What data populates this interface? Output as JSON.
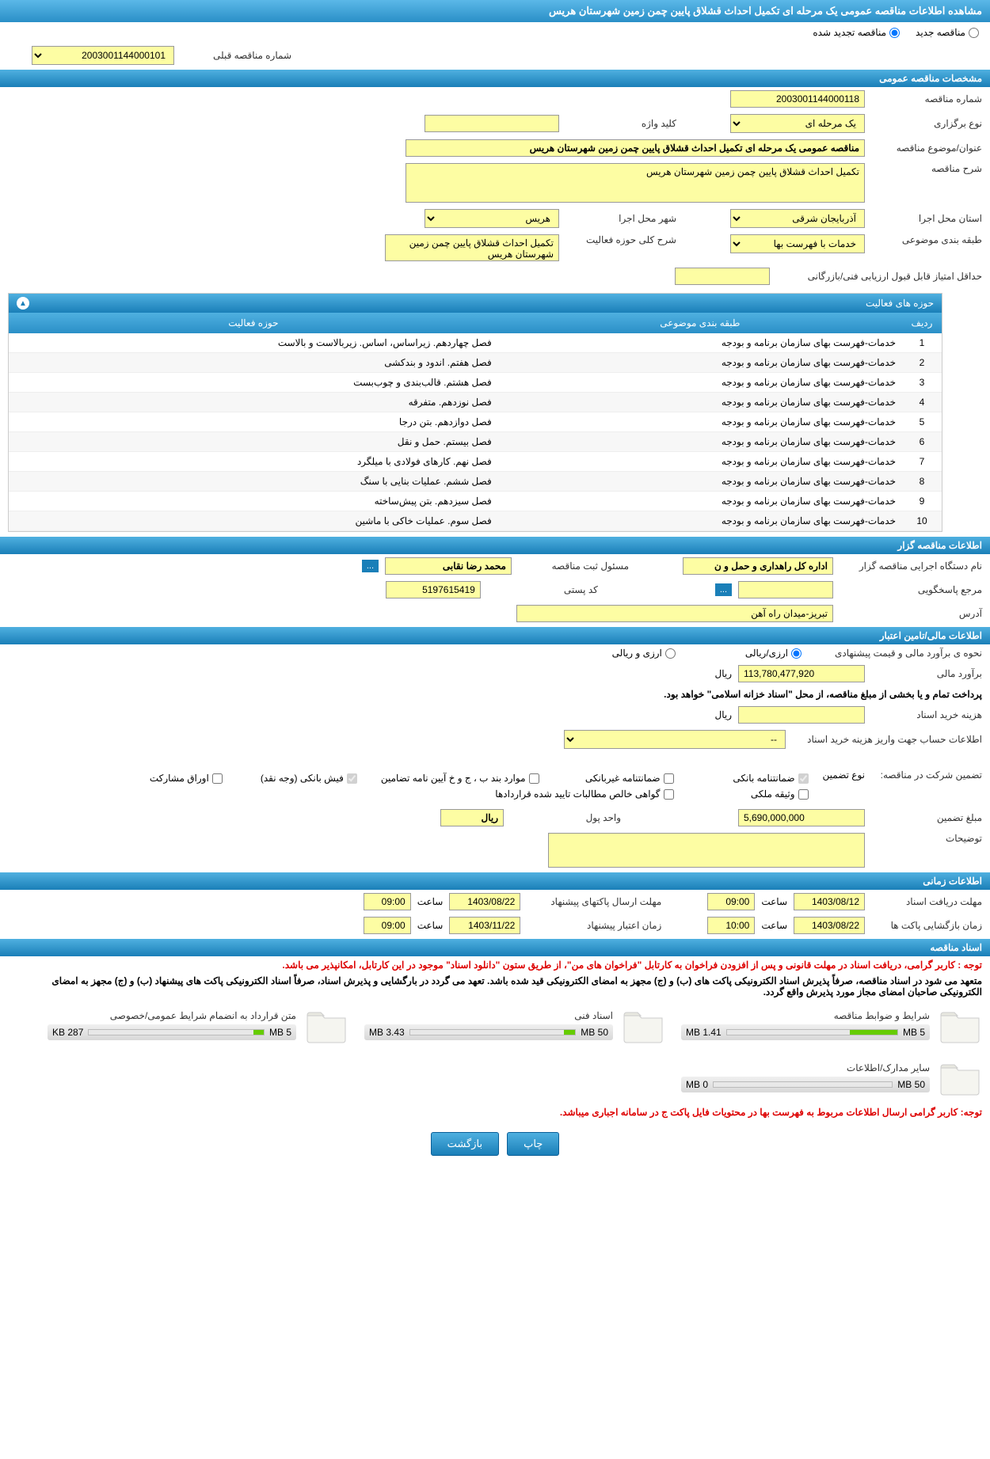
{
  "header": {
    "title": "مشاهده اطلاعات مناقصه عمومی یک مرحله ای تکمیل احداث قشلاق پایین چمن زمین شهرستان هریس"
  },
  "top_options": {
    "new_tender": "مناقصه جدید",
    "renewed_tender": "مناقصه تجدید شده",
    "prev_number_label": "شماره مناقصه قبلی",
    "prev_number": "2003001144000101"
  },
  "sections": {
    "general": "مشخصات مناقصه عمومی",
    "organizer": "اطلاعات مناقصه گزار",
    "financial": "اطلاعات مالی/تامین اعتبار",
    "timing": "اطلاعات زمانی",
    "documents": "اسناد مناقصه"
  },
  "general": {
    "tender_number_label": "شماره مناقصه",
    "tender_number": "2003001144000118",
    "type_label": "نوع برگزاری",
    "type_value": "یک مرحله ای",
    "keyword_label": "کلید واژه",
    "keyword_value": "",
    "title_label": "عنوان/موضوع مناقصه",
    "title_value": "مناقصه عمومی یک مرحله ای تکمیل احداث قشلاق پایین چمن زمین شهرستان هریس",
    "desc_label": "شرح مناقصه",
    "desc_value": "تکمیل احداث قشلاق پایین چمن زمین شهرستان هریس",
    "province_label": "استان محل اجرا",
    "province_value": "آذربایجان شرقی",
    "city_label": "شهر محل اجرا",
    "city_value": "هریس",
    "category_label": "طبقه بندی موضوعی",
    "category_value": "خدمات با فهرست بها",
    "activity_desc_label": "شرح کلی حوزه فعالیت",
    "activity_desc_value": "تکمیل احداث قشلاق پایین چمن زمین شهرستان هریس",
    "min_score_label": "حداقل امتیاز قابل قبول ارزیابی فنی/بازرگانی",
    "min_score_value": ""
  },
  "activity_table": {
    "title": "حوزه های فعالیت",
    "col_row": "ردیف",
    "col_category": "طبقه بندی موضوعی",
    "col_activity": "حوزه فعالیت",
    "rows": [
      {
        "n": "1",
        "cat": "خدمات-فهرست بهای سازمان برنامه و بودجه",
        "act": "فصل چهاردهم. زیراساس، اساس. زیربالاست و بالاست"
      },
      {
        "n": "2",
        "cat": "خدمات-فهرست بهای سازمان برنامه و بودجه",
        "act": "فصل هفتم. اندود و بندکشی"
      },
      {
        "n": "3",
        "cat": "خدمات-فهرست بهای سازمان برنامه و بودجه",
        "act": "فصل هشتم. قالب‌بندی و چوب‌بست"
      },
      {
        "n": "4",
        "cat": "خدمات-فهرست بهای سازمان برنامه و بودجه",
        "act": "فصل نوزدهم. متفرقه"
      },
      {
        "n": "5",
        "cat": "خدمات-فهرست بهای سازمان برنامه و بودجه",
        "act": "فصل دوازدهم. بتن درجا"
      },
      {
        "n": "6",
        "cat": "خدمات-فهرست بهای سازمان برنامه و بودجه",
        "act": "فصل بیستم. حمل و نقل"
      },
      {
        "n": "7",
        "cat": "خدمات-فهرست بهای سازمان برنامه و بودجه",
        "act": "فصل نهم. کارهای فولادی با میلگرد"
      },
      {
        "n": "8",
        "cat": "خدمات-فهرست بهای سازمان برنامه و بودجه",
        "act": "فصل ششم. عملیات بنایی با سنگ"
      },
      {
        "n": "9",
        "cat": "خدمات-فهرست بهای سازمان برنامه و بودجه",
        "act": "فصل سیزدهم. بتن پیش‌ساخته"
      },
      {
        "n": "10",
        "cat": "خدمات-فهرست بهای سازمان برنامه و بودجه",
        "act": "فصل سوم. عملیات خاکی با ماشین"
      }
    ]
  },
  "organizer": {
    "org_label": "نام دستگاه اجرایی مناقصه گزار",
    "org_value": "اداره کل راهداری و حمل و ن",
    "responsible_label": "مسئول ثبت مناقصه",
    "responsible_value": "محمد رضا نقابی",
    "respond_label": "مرجع پاسخگویی",
    "respond_value": "",
    "postal_label": "کد پستی",
    "postal_value": "5197615419",
    "address_label": "آدرس",
    "address_value": "تبریز-میدان راه آهن"
  },
  "financial": {
    "method_label": "نحوه ی برآورد مالی و قیمت پیشنهادی",
    "method_opt1": "ارزی/ریالی",
    "method_opt2": "ارزی و ریالی",
    "estimate_label": "برآورد مالی",
    "estimate_value": "113,780,477,920",
    "currency": "ریال",
    "payment_note": "پرداخت تمام و یا بخشی از مبلغ مناقصه، از محل \"اسناد خزانه اسلامی\" خواهد بود.",
    "doc_cost_label": "هزینه خرید اسناد",
    "doc_cost_value": "",
    "account_label": "اطلاعات حساب جهت واریز هزینه خرید اسناد",
    "account_value": "--",
    "guarantee_label": "تضمین شرکت در مناقصه:",
    "guarantee_type_label": "نوع تضمین",
    "guarantee_opts": {
      "bank": "ضمانتنامه بانکی",
      "nonbank": "ضمانتنامه غیربانکی",
      "items": "موارد بند ب ، ج و خ آیین نامه تضامین",
      "cash": "فیش بانکی (وجه نقد)",
      "shares": "اوراق مشارکت",
      "property": "وثیقه ملکی",
      "net": "گواهی خالص مطالبات تایید شده قراردادها"
    },
    "guarantee_amount_label": "مبلغ تضمین",
    "guarantee_amount": "5,690,000,000",
    "unit_label": "واحد پول",
    "unit_value": "ریال",
    "notes_label": "توضیحات"
  },
  "timing": {
    "receive_deadline_label": "مهلت دریافت اسناد",
    "receive_date": "1403/08/12",
    "receive_time": "09:00",
    "send_deadline_label": "مهلت ارسال پاکتهای پیشنهاد",
    "send_date": "1403/08/22",
    "send_time": "09:00",
    "open_label": "زمان بازگشایی پاکت ها",
    "open_date": "1403/08/22",
    "open_time": "10:00",
    "validity_label": "زمان اعتبار پیشنهاد",
    "validity_date": "1403/11/22",
    "validity_time": "09:00",
    "time_label": "ساعت"
  },
  "notices": {
    "n1": "توجه : کاربر گرامی، دریافت اسناد در مهلت قانونی و پس از افزودن فراخوان به کارتابل \"فراخوان های من\"، از طریق ستون \"دانلود اسناد\" موجود در این کارتابل، امکانپذیر می باشد.",
    "n2": "متعهد می شود در اسناد مناقصه، صرفاً پذیرش اسناد الکترونیکی پاکت های (ب) و (ج) مجهز به امضای الکترونیکی قید شده باشد. تعهد می گردد در بارگشایی و پذیرش اسناد، صرفاً اسناد الکترونیکی پاکت های پیشنهاد (ب) و (ج) مجهز به امضای الکترونیکی صاحبان امضای مجاز مورد پذیرش واقع گردد.",
    "n3": "توجه: کاربر گرامی ارسال اطلاعات مربوط به فهرست بها در محتویات فایل پاکت ج در سامانه اجباری میباشد."
  },
  "documents": {
    "items": [
      {
        "title": "شرایط و ضوابط مناقصه",
        "used": "1.41 MB",
        "total": "5 MB",
        "pct": 28
      },
      {
        "title": "اسناد فنی",
        "used": "3.43 MB",
        "total": "50 MB",
        "pct": 7
      },
      {
        "title": "متن قرارداد به انضمام شرایط عمومی/خصوصی",
        "used": "287 KB",
        "total": "5 MB",
        "pct": 6
      },
      {
        "title": "سایر مدارک/اطلاعات",
        "used": "0 MB",
        "total": "50 MB",
        "pct": 0
      }
    ]
  },
  "buttons": {
    "print": "چاپ",
    "back": "بازگشت",
    "dots": "..."
  },
  "colors": {
    "header_bg": "#2a8fc7",
    "yellow": "#fdfda3",
    "red": "#d00000"
  }
}
